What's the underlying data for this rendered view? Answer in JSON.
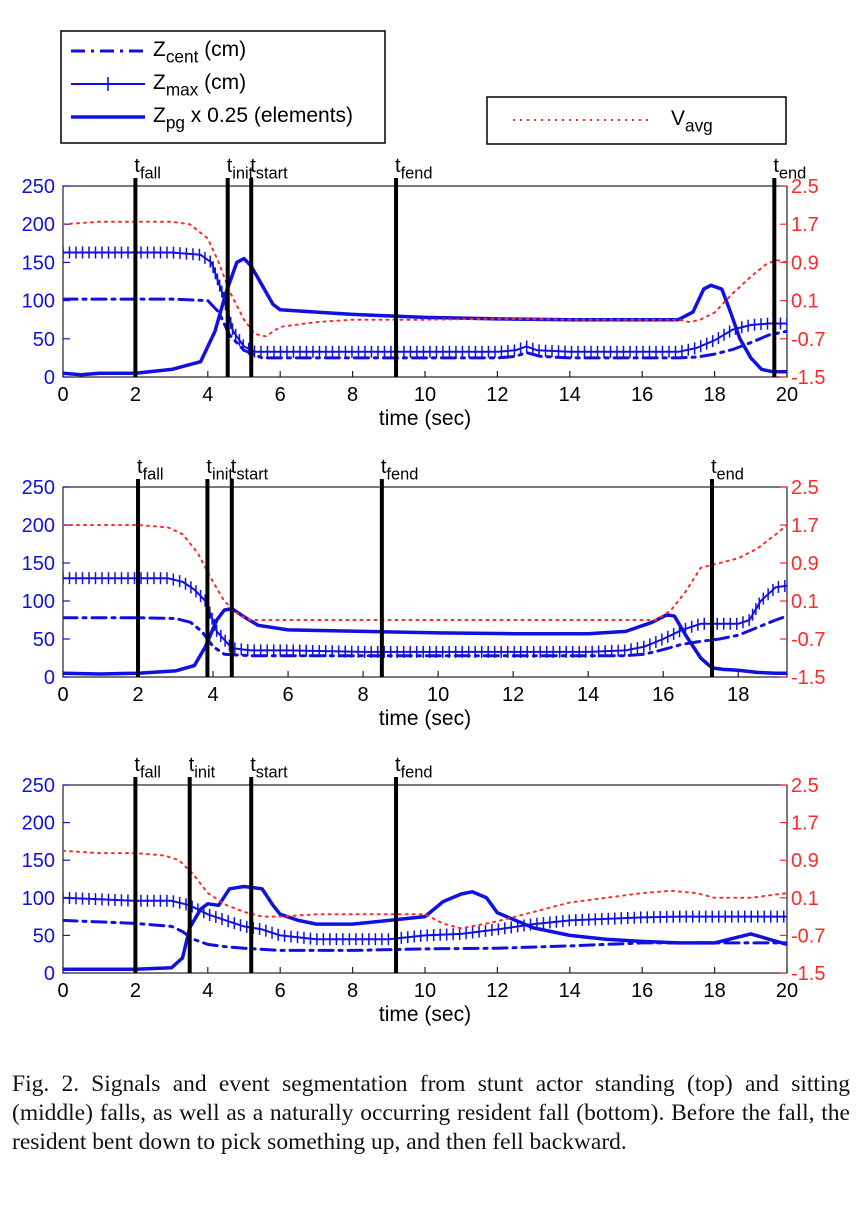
{
  "legend_left": {
    "entries": [
      {
        "base": "Z",
        "sub": "cent",
        "after": " (cm)",
        "style": "dashdot"
      },
      {
        "base": "Z",
        "sub": "max",
        "after": " (cm)",
        "style": "plus"
      },
      {
        "base": "Z",
        "sub": "pg",
        "after": " x 0.25 (elements)",
        "style": "solid"
      }
    ]
  },
  "legend_right": {
    "entries": [
      {
        "base": "V",
        "sub": "avg",
        "after": "",
        "style": "dotted"
      }
    ]
  },
  "colors": {
    "blue": "#1010e0",
    "red": "#ff2a2a",
    "black": "#000000"
  },
  "chart_data": [
    {
      "type": "line",
      "xlabel": "time (sec)",
      "xlim": [
        0,
        20
      ],
      "xticks": [
        0,
        2,
        4,
        6,
        8,
        10,
        12,
        14,
        16,
        18,
        20
      ],
      "ylim_left": [
        0,
        250
      ],
      "yticks_left": [
        0,
        50,
        100,
        150,
        200,
        250
      ],
      "ylim_right": [
        -1.5,
        2.5
      ],
      "yticks_right": [
        -1.5,
        -0.7,
        0.1,
        0.9,
        1.7,
        2.5
      ],
      "events": [
        {
          "base": "t",
          "sub": "fall",
          "x": 2.0
        },
        {
          "base": "t",
          "sub": "init",
          "x": 4.55
        },
        {
          "base": "t",
          "sub": "start",
          "x": 5.2
        },
        {
          "base": "t",
          "sub": "fend",
          "x": 9.2
        },
        {
          "base": "t",
          "sub": "end",
          "x": 19.65
        }
      ],
      "series": [
        {
          "name": "Z_cent (cm)",
          "axis": "left",
          "style": "dashdot",
          "x": [
            0,
            1,
            2,
            3,
            4,
            4.3,
            4.6,
            5,
            5.5,
            6,
            8,
            10,
            12,
            12.5,
            12.8,
            13.2,
            14,
            16,
            17,
            17.5,
            18,
            18.5,
            19,
            19.5,
            20
          ],
          "y": [
            102,
            102,
            102,
            102,
            100,
            85,
            55,
            35,
            25,
            25,
            25,
            25,
            25,
            27,
            32,
            27,
            25,
            25,
            25,
            26,
            30,
            36,
            45,
            55,
            60
          ]
        },
        {
          "name": "Z_max (cm)",
          "axis": "left",
          "style": "plus",
          "x": [
            0,
            1,
            2,
            3,
            3.8,
            4.1,
            4.4,
            4.7,
            5,
            5.3,
            5.6,
            6,
            8,
            10,
            12,
            12.5,
            12.8,
            13.1,
            14,
            16,
            17,
            17.5,
            18,
            18.5,
            19,
            19.5,
            20
          ],
          "y": [
            163,
            163,
            163,
            163,
            160,
            150,
            110,
            60,
            40,
            33,
            33,
            33,
            33,
            33,
            33,
            35,
            40,
            35,
            33,
            33,
            33,
            38,
            48,
            62,
            68,
            70,
            70
          ]
        },
        {
          "name": "Z_pg x 0.25 (elements)",
          "axis": "left",
          "style": "solid",
          "x": [
            0,
            0.5,
            1,
            2,
            3,
            3.8,
            4.2,
            4.5,
            4.8,
            5.0,
            5.2,
            5.5,
            5.8,
            6,
            7,
            8,
            9,
            10,
            12,
            14,
            16,
            17,
            17.4,
            17.7,
            17.9,
            18.2,
            18.4,
            18.7,
            19,
            19.3,
            19.6,
            20
          ],
          "y": [
            5,
            3,
            5,
            5,
            10,
            20,
            60,
            110,
            150,
            155,
            145,
            120,
            95,
            88,
            85,
            82,
            80,
            78,
            76,
            75,
            75,
            75,
            85,
            115,
            120,
            115,
            90,
            50,
            25,
            10,
            7,
            7
          ]
        },
        {
          "name": "V_avg",
          "axis": "right",
          "style": "dotted",
          "x": [
            0,
            1,
            2,
            3,
            3.5,
            4,
            4.3,
            4.6,
            5,
            5.3,
            5.6,
            6,
            7,
            8,
            10,
            12,
            14,
            16,
            17,
            17.3,
            17.6,
            18,
            18.5,
            19,
            19.4,
            19.7,
            20
          ],
          "y": [
            1.7,
            1.75,
            1.75,
            1.75,
            1.7,
            1.4,
            0.9,
            0.3,
            -0.3,
            -0.6,
            -0.65,
            -0.45,
            -0.35,
            -0.3,
            -0.3,
            -0.28,
            -0.3,
            -0.3,
            -0.3,
            -0.35,
            -0.3,
            -0.15,
            0.25,
            0.6,
            0.85,
            0.95,
            0.9
          ]
        }
      ]
    },
    {
      "type": "line",
      "xlabel": "time (sec)",
      "xlim": [
        0,
        19.3
      ],
      "xticks": [
        0,
        2,
        4,
        6,
        8,
        10,
        12,
        14,
        16,
        18
      ],
      "ylim_left": [
        0,
        250
      ],
      "yticks_left": [
        0,
        50,
        100,
        150,
        200,
        250
      ],
      "ylim_right": [
        -1.5,
        2.5
      ],
      "yticks_right": [
        -1.5,
        -0.7,
        0.1,
        0.9,
        1.7,
        2.5
      ],
      "events": [
        {
          "base": "t",
          "sub": "fall",
          "x": 2.0
        },
        {
          "base": "t",
          "sub": "init",
          "x": 3.85
        },
        {
          "base": "t",
          "sub": "start",
          "x": 4.5
        },
        {
          "base": "t",
          "sub": "fend",
          "x": 8.5
        },
        {
          "base": "t",
          "sub": "end",
          "x": 17.3
        }
      ],
      "series": [
        {
          "name": "Z_cent (cm)",
          "axis": "left",
          "style": "dashdot",
          "x": [
            0,
            1,
            2,
            3,
            3.4,
            3.7,
            4,
            4.3,
            5,
            6,
            8,
            10,
            12,
            14,
            15,
            15.5,
            16,
            16.5,
            17,
            17.5,
            18,
            18.5,
            19,
            19.3
          ],
          "y": [
            78,
            78,
            78,
            77,
            72,
            60,
            40,
            30,
            28,
            28,
            28,
            28,
            28,
            28,
            28,
            30,
            36,
            43,
            47,
            50,
            55,
            65,
            75,
            80
          ]
        },
        {
          "name": "Z_max (cm)",
          "axis": "left",
          "style": "plus",
          "x": [
            0,
            1,
            2,
            2.8,
            3.2,
            3.5,
            3.8,
            4.1,
            4.5,
            5,
            6,
            8,
            10,
            12,
            14,
            15,
            15.5,
            16,
            16.5,
            17,
            17.5,
            18,
            18.3,
            18.6,
            19,
            19.3
          ],
          "y": [
            130,
            130,
            130,
            130,
            125,
            115,
            100,
            60,
            38,
            35,
            35,
            33,
            33,
            33,
            33,
            35,
            40,
            50,
            62,
            70,
            70,
            70,
            75,
            100,
            118,
            120
          ]
        },
        {
          "name": "Z_pg x 0.25 (elements)",
          "axis": "left",
          "style": "solid",
          "x": [
            0,
            1,
            2,
            3,
            3.5,
            3.8,
            4.1,
            4.3,
            4.5,
            4.8,
            5.2,
            6,
            8,
            10,
            12,
            14,
            15,
            15.7,
            16.1,
            16.3,
            16.6,
            17,
            17.3,
            17.6,
            18,
            18.5,
            19,
            19.3
          ],
          "y": [
            5,
            4,
            5,
            8,
            15,
            40,
            75,
            88,
            90,
            80,
            68,
            62,
            60,
            58,
            57,
            57,
            60,
            72,
            82,
            80,
            55,
            25,
            12,
            10,
            9,
            6,
            5,
            5
          ]
        },
        {
          "name": "V_avg",
          "axis": "right",
          "style": "dotted",
          "x": [
            0,
            1,
            2,
            2.8,
            3.2,
            3.6,
            4,
            4.3,
            4.7,
            5,
            6,
            8,
            10,
            12,
            14,
            15,
            15.8,
            16.2,
            16.6,
            17,
            17.5,
            18,
            18.5,
            19,
            19.3
          ],
          "y": [
            1.7,
            1.7,
            1.7,
            1.65,
            1.5,
            1.1,
            0.5,
            0.1,
            -0.2,
            -0.3,
            -0.3,
            -0.3,
            -0.3,
            -0.3,
            -0.3,
            -0.3,
            -0.3,
            -0.1,
            0.3,
            0.8,
            0.9,
            1.0,
            1.2,
            1.5,
            1.7
          ]
        }
      ]
    },
    {
      "type": "line",
      "xlabel": "time (sec)",
      "xlim": [
        0,
        20
      ],
      "xticks": [
        0,
        2,
        4,
        6,
        8,
        10,
        12,
        14,
        16,
        18,
        20
      ],
      "ylim_left": [
        0,
        250
      ],
      "yticks_left": [
        0,
        50,
        100,
        150,
        200,
        250
      ],
      "ylim_right": [
        -1.5,
        2.5
      ],
      "yticks_right": [
        -1.5,
        -0.7,
        0.1,
        0.9,
        1.7,
        2.5
      ],
      "events": [
        {
          "base": "t",
          "sub": "fall",
          "x": 2.0
        },
        {
          "base": "t",
          "sub": "init",
          "x": 3.5
        },
        {
          "base": "t",
          "sub": "start",
          "x": 5.2
        },
        {
          "base": "t",
          "sub": "fend",
          "x": 9.2
        }
      ],
      "series": [
        {
          "name": "Z_cent (cm)",
          "axis": "left",
          "style": "dashdot",
          "x": [
            0,
            1,
            2,
            3,
            3.3,
            3.6,
            4,
            4.5,
            5,
            6,
            8,
            10,
            12,
            14,
            16,
            18,
            20
          ],
          "y": [
            70,
            68,
            66,
            62,
            55,
            45,
            38,
            35,
            33,
            30,
            30,
            32,
            33,
            36,
            40,
            40,
            40
          ]
        },
        {
          "name": "Z_max (cm)",
          "axis": "left",
          "style": "plus",
          "x": [
            0,
            1,
            2,
            3,
            3.5,
            4,
            4.5,
            5,
            5.5,
            6,
            7,
            8,
            9,
            10,
            11,
            12,
            13,
            14,
            15,
            16,
            17,
            18,
            19,
            20
          ],
          "y": [
            100,
            98,
            96,
            96,
            90,
            78,
            70,
            62,
            58,
            50,
            45,
            45,
            45,
            50,
            52,
            58,
            65,
            70,
            72,
            74,
            75,
            75,
            75,
            75
          ]
        },
        {
          "name": "Z_pg x 0.25 (elements)",
          "axis": "left",
          "style": "solid",
          "x": [
            0,
            1,
            2,
            3,
            3.3,
            3.5,
            3.8,
            4,
            4.3,
            4.6,
            5,
            5.5,
            5.8,
            6,
            6.5,
            7,
            8,
            9,
            10,
            10.5,
            11,
            11.3,
            11.7,
            12,
            13,
            14,
            15,
            16,
            17,
            18,
            19,
            20
          ],
          "y": [
            5,
            5,
            5,
            7,
            20,
            60,
            85,
            92,
            90,
            112,
            115,
            112,
            90,
            78,
            70,
            65,
            65,
            70,
            75,
            95,
            105,
            108,
            100,
            80,
            60,
            50,
            45,
            42,
            40,
            40,
            52,
            38
          ]
        },
        {
          "name": "V_avg",
          "axis": "right",
          "style": "dotted",
          "x": [
            0,
            1,
            2,
            2.8,
            3.2,
            3.6,
            4,
            4.5,
            5,
            5.5,
            6,
            7,
            8,
            9,
            10,
            10.5,
            11,
            12,
            13,
            14,
            15,
            16,
            16.8,
            17.5,
            18,
            19,
            20
          ],
          "y": [
            1.1,
            1.05,
            1.05,
            1.0,
            0.9,
            0.6,
            0.2,
            -0.05,
            -0.2,
            -0.3,
            -0.3,
            -0.25,
            -0.25,
            -0.25,
            -0.25,
            -0.45,
            -0.55,
            -0.4,
            -0.2,
            0.0,
            0.1,
            0.2,
            0.25,
            0.2,
            0.1,
            0.1,
            0.2
          ]
        }
      ]
    }
  ],
  "caption": {
    "label": "Fig. 2.",
    "text": "Signals and event segmentation from stunt actor standing (top) and sitting (middle) falls, as well as a naturally occurring resident fall (bottom). Before the fall, the resident bent down to pick something up, and then fell backward."
  }
}
